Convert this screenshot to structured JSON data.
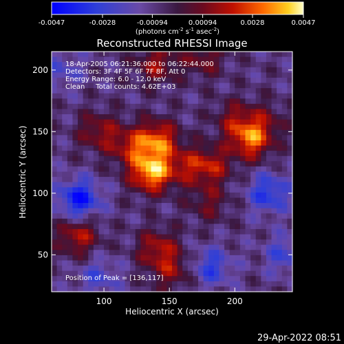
{
  "chart_data": {
    "type": "heatmap",
    "title": "Reconstructed RHESSI Image",
    "xlabel": "Heliocentric X (arcsec)",
    "ylabel": "Heliocentric Y (arcsec)",
    "xlim": [
      60,
      244
    ],
    "ylim": [
      20,
      215
    ],
    "x_ticks": [
      100,
      150,
      200
    ],
    "y_ticks": [
      50,
      100,
      150,
      200
    ],
    "colorbar": {
      "min": -0.0047,
      "max": 0.0047,
      "ticks": [
        "-0.0047",
        "-0.0028",
        "-0.00094",
        "0.00094",
        "0.0028",
        "0.0047"
      ],
      "tick_values": [
        -0.0047,
        -0.0028,
        -0.00094,
        0.00094,
        0.0028,
        0.0047
      ],
      "units_text": "(photons cm",
      "units_exp1": "-2",
      "units_mid": " s",
      "units_exp2": "-1",
      "units_end": " asec",
      "units_exp3": "-2",
      "units_close": ")"
    },
    "info_lines": [
      "18-Apr-2005 06:21:36.000 to 06:22:44.000",
      "Detectors: 3F 4F 5F 6F 7F 8F, Att 0",
      "Energy Range: 6.0 - 12.0 keV",
      "Clean     Total counts: 4.62E+03"
    ],
    "peak_label": "Position of Peak = [136,117]",
    "peak": [
      136,
      117
    ],
    "sources": [
      {
        "x": 136,
        "y": 117,
        "value": 0.0047
      },
      {
        "x": 141,
        "y": 143,
        "value": 0.0036
      },
      {
        "x": 120,
        "y": 138,
        "value": 0.0024
      },
      {
        "x": 181,
        "y": 122,
        "value": 0.0026
      },
      {
        "x": 161,
        "y": 122,
        "value": 0.0018
      },
      {
        "x": 212,
        "y": 143,
        "value": 0.0036
      },
      {
        "x": 200,
        "y": 160,
        "value": 0.0018
      },
      {
        "x": 223,
        "y": 158,
        "value": 0.0014
      },
      {
        "x": 96,
        "y": 150,
        "value": 0.0021
      },
      {
        "x": 140,
        "y": 205,
        "value": 0.0022
      },
      {
        "x": 176,
        "y": 210,
        "value": 0.0018
      },
      {
        "x": 80,
        "y": 65,
        "value": 0.0026
      },
      {
        "x": 141,
        "y": 55,
        "value": 0.0024
      },
      {
        "x": 152,
        "y": 37,
        "value": 0.0019
      },
      {
        "x": 180,
        "y": 92,
        "value": 0.0015
      },
      {
        "x": 81,
        "y": 95,
        "value": -0.0035
      },
      {
        "x": 226,
        "y": 100,
        "value": -0.0026
      },
      {
        "x": 182,
        "y": 40,
        "value": -0.0022
      },
      {
        "x": 96,
        "y": 32,
        "value": -0.0016
      },
      {
        "x": 238,
        "y": 50,
        "value": -0.0018
      },
      {
        "x": 68,
        "y": 200,
        "value": -0.0014
      }
    ]
  },
  "timestamp": "29-Apr-2022 08:51"
}
